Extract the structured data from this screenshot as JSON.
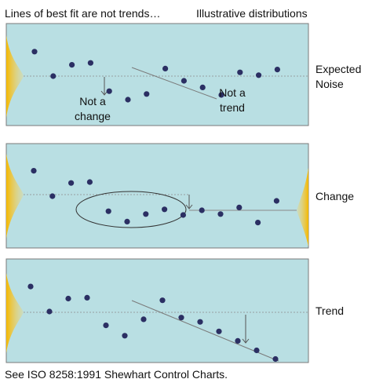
{
  "title": "Lines of best fit are not trends…",
  "subtitle": "Illustrative distributions",
  "footer": "See ISO 8258:1991 Shewhart Control Charts.",
  "colors": {
    "panel_fill": "#b9dfe3",
    "panel_border": "#7a7a7a",
    "point": "#2b2f63",
    "line": "#7a7a7a",
    "distribution_gold": "#f5b800"
  },
  "panels": [
    {
      "label": "Expected Noise",
      "notes": [
        "Not a change",
        "Not a trend"
      ],
      "series": [
        {
          "x": 1,
          "y": 2.6
        },
        {
          "x": 2,
          "y": 0.0
        },
        {
          "x": 3,
          "y": 1.2
        },
        {
          "x": 4,
          "y": 1.4
        },
        {
          "x": 5,
          "y": -1.6
        },
        {
          "x": 6,
          "y": -2.5
        },
        {
          "x": 7,
          "y": -1.9
        },
        {
          "x": 8,
          "y": 0.8
        },
        {
          "x": 9,
          "y": -0.5
        },
        {
          "x": 10,
          "y": -1.2
        },
        {
          "x": 11,
          "y": -2.0
        },
        {
          "x": 12,
          "y": 0.4
        },
        {
          "x": 13,
          "y": 0.1
        },
        {
          "x": 14,
          "y": 0.7
        }
      ]
    },
    {
      "label": "Change",
      "notes": [],
      "series": [
        {
          "x": 1,
          "y": 2.7
        },
        {
          "x": 2,
          "y": 0.0
        },
        {
          "x": 3,
          "y": 1.4
        },
        {
          "x": 4,
          "y": 1.5
        },
        {
          "x": 5,
          "y": -1.6
        },
        {
          "x": 6,
          "y": -2.7
        },
        {
          "x": 7,
          "y": -1.9
        },
        {
          "x": 8,
          "y": -1.4
        },
        {
          "x": 9,
          "y": -2.0
        },
        {
          "x": 10,
          "y": -1.5
        },
        {
          "x": 11,
          "y": -1.9
        },
        {
          "x": 12,
          "y": -1.2
        },
        {
          "x": 13,
          "y": -2.8
        },
        {
          "x": 14,
          "y": -0.5
        }
      ]
    },
    {
      "label": "Trend",
      "notes": [],
      "series": [
        {
          "x": 1,
          "y": 2.9
        },
        {
          "x": 2,
          "y": 0.0
        },
        {
          "x": 3,
          "y": 1.5
        },
        {
          "x": 4,
          "y": 1.6
        },
        {
          "x": 5,
          "y": -1.6
        },
        {
          "x": 6,
          "y": -2.8
        },
        {
          "x": 7,
          "y": -0.9
        },
        {
          "x": 8,
          "y": 1.3
        },
        {
          "x": 9,
          "y": -0.7
        },
        {
          "x": 10,
          "y": -1.2
        },
        {
          "x": 11,
          "y": -2.3
        },
        {
          "x": 12,
          "y": -3.4
        },
        {
          "x": 13,
          "y": -4.5
        },
        {
          "x": 14,
          "y": -5.5
        }
      ]
    }
  ]
}
